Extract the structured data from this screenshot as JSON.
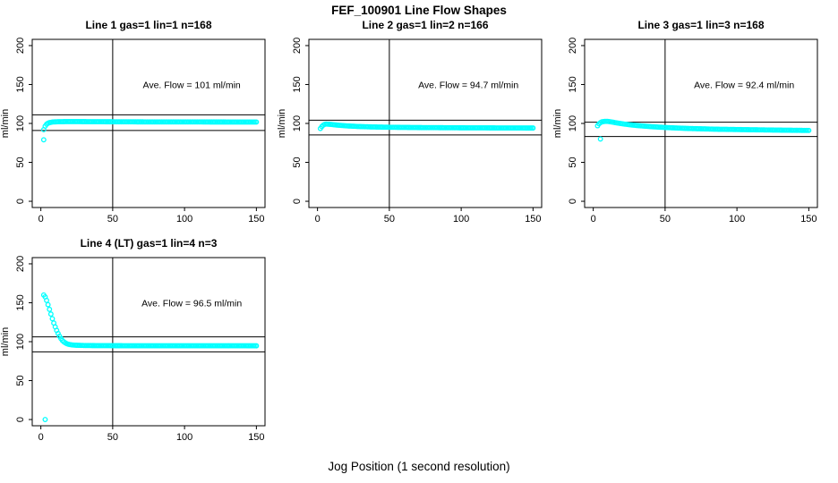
{
  "chart_data": {
    "type": "scatter",
    "title": "FEF_100901  Line Flow Shapes",
    "xlabel": "Jog Position (1 second resolution)",
    "ylabel": "ml/min",
    "xlim": [
      0,
      150
    ],
    "ylim": [
      0,
      200
    ],
    "x_ticks": [
      0,
      50,
      100,
      150
    ],
    "y_ticks": [
      0,
      50,
      100,
      150,
      200
    ],
    "marker": "open-circle",
    "marker_color": "#00FFFF",
    "axis_color": "#000000",
    "grid": false,
    "vline_x": 50,
    "annotation_pos": [
      105,
      150
    ],
    "panels": [
      {
        "title": "Line 1 gas=1 lin=1 n=168",
        "annotation": "Ave. Flow =  101  ml/min",
        "ave_flow": 101,
        "n": 168,
        "hlines": [
          111.1,
          90.9
        ],
        "series_anchors": [
          [
            2,
            92
          ],
          [
            3,
            96.5
          ],
          [
            4,
            99
          ],
          [
            5,
            100.3
          ],
          [
            6,
            101
          ],
          [
            8,
            101.8
          ],
          [
            12,
            102.2
          ],
          [
            20,
            102.4
          ],
          [
            40,
            102.2
          ],
          [
            70,
            102
          ],
          [
            110,
            101.9
          ],
          [
            150,
            101.8
          ]
        ],
        "outliers": [
          [
            2,
            79
          ]
        ],
        "x_start": 2,
        "x_end": 150
      },
      {
        "title": "Line 2 gas=1 lin=2 n=166",
        "annotation": "Ave. Flow =  94.7  ml/min",
        "ave_flow": 94.7,
        "n": 166,
        "hlines": [
          104.2,
          85.2
        ],
        "series_anchors": [
          [
            2,
            93.5
          ],
          [
            3,
            96
          ],
          [
            4,
            97.8
          ],
          [
            5,
            98.8
          ],
          [
            6,
            99.2
          ],
          [
            8,
            99
          ],
          [
            10,
            98.6
          ],
          [
            14,
            97.8
          ],
          [
            20,
            96.9
          ],
          [
            28,
            96.1
          ],
          [
            38,
            95.5
          ],
          [
            50,
            95.1
          ],
          [
            70,
            94.7
          ],
          [
            100,
            94.4
          ],
          [
            130,
            94.2
          ],
          [
            150,
            94.1
          ]
        ],
        "outliers": [],
        "x_start": 2,
        "x_end": 150
      },
      {
        "title": "Line 3 gas=1 lin=3 n=168",
        "annotation": "Ave. Flow =  92.4  ml/min",
        "ave_flow": 92.4,
        "n": 168,
        "hlines": [
          101.6,
          83.2
        ],
        "series_anchors": [
          [
            3,
            97
          ],
          [
            4,
            99.5
          ],
          [
            5,
            101
          ],
          [
            6,
            102
          ],
          [
            8,
            102.6
          ],
          [
            10,
            102.6
          ],
          [
            13,
            101.8
          ],
          [
            16,
            100.8
          ],
          [
            20,
            99.6
          ],
          [
            25,
            98.4
          ],
          [
            30,
            97.4
          ],
          [
            40,
            95.9
          ],
          [
            50,
            94.8
          ],
          [
            65,
            93.6
          ],
          [
            85,
            92.6
          ],
          [
            110,
            91.9
          ],
          [
            130,
            91.4
          ],
          [
            150,
            91
          ]
        ],
        "outliers": [
          [
            5,
            80
          ]
        ],
        "x_start": 3,
        "x_end": 150
      },
      {
        "title": "Line 4 (LT) gas=1 lin=4 n=3",
        "annotation": "Ave. Flow =  96.5  ml/min",
        "ave_flow": 96.5,
        "n": 3,
        "hlines": [
          106.2,
          86.9
        ],
        "series_anchors": [
          [
            2,
            160
          ],
          [
            3,
            157.5
          ],
          [
            4,
            153
          ],
          [
            5,
            147.5
          ],
          [
            6,
            141.5
          ],
          [
            7,
            135.5
          ],
          [
            8,
            129.5
          ],
          [
            9,
            124
          ],
          [
            10,
            119
          ],
          [
            11,
            114.5
          ],
          [
            12,
            110.5
          ],
          [
            13,
            107
          ],
          [
            14,
            104
          ],
          [
            15,
            101.5
          ],
          [
            16,
            99.8
          ],
          [
            17,
            98.5
          ],
          [
            18,
            97.5
          ],
          [
            19,
            96.8
          ],
          [
            20,
            96.3
          ],
          [
            22,
            95.8
          ],
          [
            25,
            95.4
          ],
          [
            30,
            95.1
          ],
          [
            40,
            94.9
          ],
          [
            60,
            94.8
          ],
          [
            100,
            94.8
          ],
          [
            150,
            94.7
          ]
        ],
        "outliers": [
          [
            3,
            0
          ]
        ],
        "x_start": 2,
        "x_end": 150
      }
    ]
  }
}
